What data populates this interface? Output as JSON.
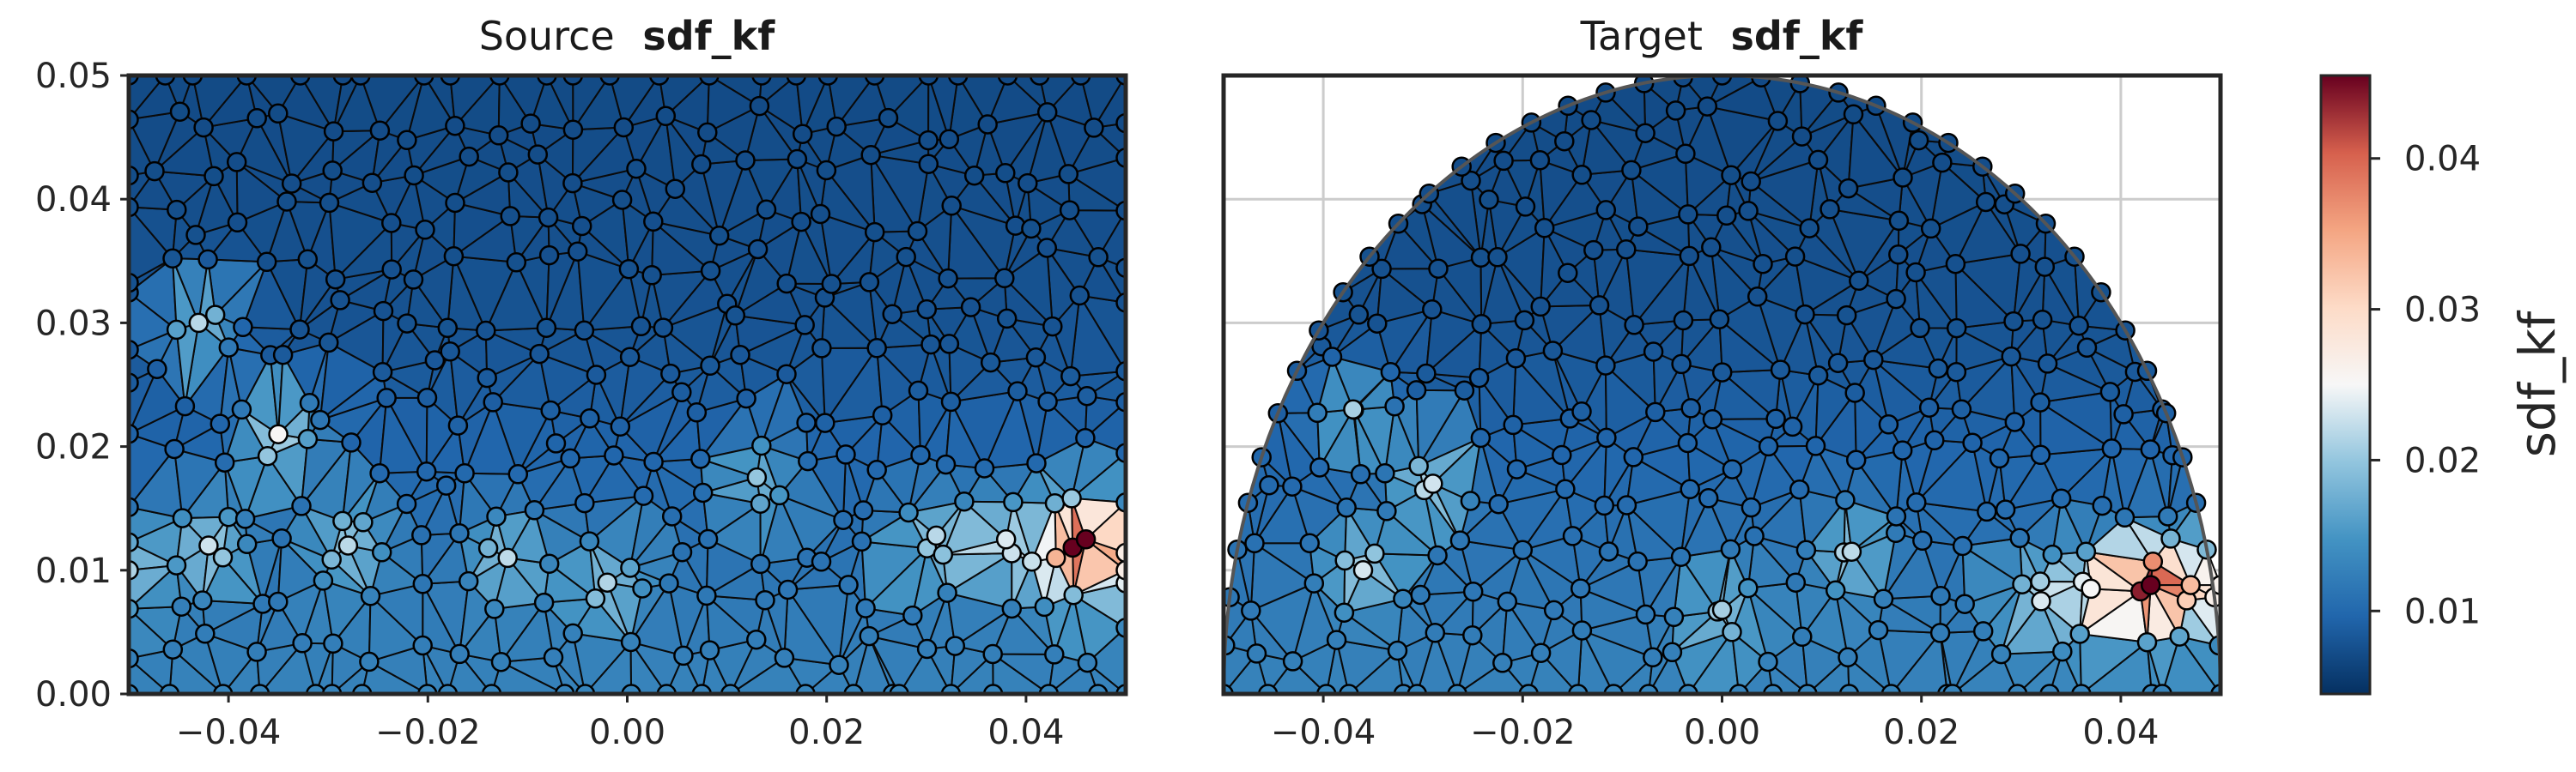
{
  "chart_data": [
    {
      "type": "scatter",
      "panel": "source",
      "title_prefix": "Source",
      "title_field": "sdf_kf",
      "xlim": [
        -0.05,
        0.05
      ],
      "ylim": [
        0.0,
        0.05
      ],
      "xticks": [
        "−0.04",
        "−0.02",
        "0.00",
        "0.02",
        "0.04"
      ],
      "xtick_values": [
        -0.04,
        -0.02,
        0.0,
        0.02,
        0.04
      ],
      "yticks": [
        "0.00",
        "0.01",
        "0.02",
        "0.03",
        "0.04",
        "0.05"
      ],
      "ytick_values": [
        0.0,
        0.01,
        0.02,
        0.03,
        0.04,
        0.05
      ],
      "domain_shape": "rectangle",
      "grid": false,
      "mesh_edges": "triangulated",
      "hotspots": [
        {
          "x": 0.046,
          "y": 0.0125,
          "value": 0.045
        },
        {
          "x": -0.035,
          "y": 0.021,
          "value": 0.026
        },
        {
          "x": -0.043,
          "y": 0.03,
          "value": 0.024
        },
        {
          "x": -0.042,
          "y": 0.012,
          "value": 0.022
        },
        {
          "x": -0.028,
          "y": 0.012,
          "value": 0.021
        },
        {
          "x": -0.012,
          "y": 0.011,
          "value": 0.021
        },
        {
          "x": -0.002,
          "y": 0.009,
          "value": 0.02
        },
        {
          "x": 0.013,
          "y": 0.0175,
          "value": 0.02
        },
        {
          "x": 0.031,
          "y": 0.0128,
          "value": 0.021
        },
        {
          "x": 0.038,
          "y": 0.0125,
          "value": 0.022
        },
        {
          "x": 0.043,
          "y": 0.011,
          "value": 0.021
        },
        {
          "x": 0.05,
          "y": 0.01,
          "value": 0.022
        },
        {
          "x": -0.05,
          "y": 0.01,
          "value": 0.02
        }
      ]
    },
    {
      "type": "scatter",
      "panel": "target",
      "title_prefix": "Target",
      "title_field": "sdf_kf",
      "xlim": [
        -0.05,
        0.05
      ],
      "ylim": [
        0.0,
        0.05
      ],
      "xticks": [
        "−0.04",
        "−0.02",
        "0.00",
        "0.02",
        "0.04"
      ],
      "xtick_values": [
        -0.04,
        -0.02,
        0.0,
        0.02,
        0.04
      ],
      "yticks": [],
      "domain_shape": "half-disk",
      "domain_radius": 0.05,
      "grid": true,
      "mesh_edges": "triangulated",
      "hotspots": [
        {
          "x": 0.043,
          "y": 0.0088,
          "value": 0.045
        },
        {
          "x": -0.037,
          "y": 0.023,
          "value": 0.022
        },
        {
          "x": -0.029,
          "y": 0.017,
          "value": 0.023
        },
        {
          "x": -0.036,
          "y": 0.01,
          "value": 0.022
        },
        {
          "x": 0.013,
          "y": 0.0115,
          "value": 0.021
        },
        {
          "x": 0.032,
          "y": 0.0075,
          "value": 0.021
        },
        {
          "x": 0.037,
          "y": 0.0085,
          "value": 0.022
        },
        {
          "x": 0.047,
          "y": 0.0088,
          "value": 0.021
        },
        {
          "x": 0.05,
          "y": 0.0088,
          "value": 0.02
        },
        {
          "x": 0.0,
          "y": 0.0068,
          "value": 0.019
        }
      ]
    }
  ],
  "colorbar": {
    "label": "sdf_kf",
    "colormap": "RdBu_r",
    "range": [
      0.0045,
      0.0455
    ],
    "ticks": [
      "0.01",
      "0.02",
      "0.03",
      "0.04"
    ],
    "tick_values": [
      0.01,
      0.02,
      0.03,
      0.04
    ]
  },
  "colors": {
    "low": "#1f5c9e",
    "mid": "#f5f5f5",
    "high": "#67001f",
    "edge": "#000000"
  }
}
